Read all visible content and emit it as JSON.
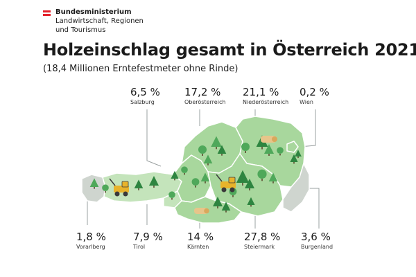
{
  "header": {
    "ministry_line1": "Bundesministerium",
    "ministry_line2": "Landwirtschaft, Regionen",
    "ministry_line3": "und Tourismus",
    "flag_colors": [
      "#e3202a",
      "#ffffff",
      "#e3202a"
    ]
  },
  "chart_data": {
    "type": "map",
    "title": "Holzeinschlag gesamt in Österreich 2021",
    "subtitle": "(18,4 Millionen Erntefestmeter ohne Rinde)",
    "regions": [
      {
        "name": "Salzburg",
        "value_label": "6,5 %",
        "value": 6.5
      },
      {
        "name": "Oberösterreich",
        "value_label": "17,2 %",
        "value": 17.2
      },
      {
        "name": "Niederösterreich",
        "value_label": "21,1 %",
        "value": 21.1
      },
      {
        "name": "Wien",
        "value_label": "0,2 %",
        "value": 0.2
      },
      {
        "name": "Vorarlberg",
        "value_label": "1,8 %",
        "value": 1.8
      },
      {
        "name": "Tirol",
        "value_label": "7,9 %",
        "value": 7.9
      },
      {
        "name": "Kärnten",
        "value_label": "14 %",
        "value": 14
      },
      {
        "name": "Steiermark",
        "value_label": "27,8 %",
        "value": 27.8
      },
      {
        "name": "Burgenland",
        "value_label": "3,6 %",
        "value": 3.6
      }
    ],
    "colors": {
      "map_fill": "#a8d79d",
      "map_fill_light": "#c4e4bb",
      "map_fill_grey": "#cfd5cf",
      "border": "#ffffff",
      "leader": "#9aa0a0",
      "tree": "#2e8540",
      "tree_light": "#4fa85a",
      "machine": "#e7b32b"
    }
  }
}
